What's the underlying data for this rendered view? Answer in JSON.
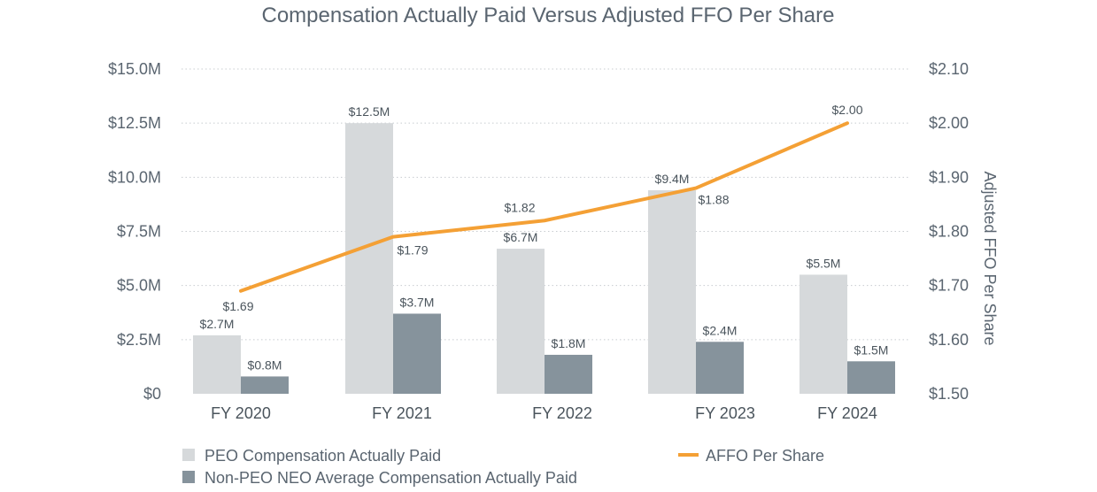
{
  "chart_data": {
    "type": "bar",
    "title": "Compensation Actually Paid Versus Adjusted FFO Per Share",
    "categories": [
      "FY 2020",
      "FY 2021",
      "FY 2022",
      "FY 2023",
      "FY 2024"
    ],
    "series": [
      {
        "name": "PEO Compensation Actually Paid",
        "type": "bar",
        "axis": "left",
        "color": "#d6d9db",
        "values": [
          2.7,
          12.5,
          6.7,
          9.4,
          5.5
        ],
        "labels": [
          "$2.7M",
          "$12.5M",
          "$6.7M",
          "$9.4M",
          "$5.5M"
        ]
      },
      {
        "name": "Non-PEO NEO Average Compensation Actually Paid",
        "type": "bar",
        "axis": "left",
        "color": "#86939c",
        "values": [
          0.8,
          3.7,
          1.8,
          2.4,
          1.5
        ],
        "labels": [
          "$0.8M",
          "$3.7M",
          "$1.8M",
          "$2.4M",
          "$1.5M"
        ]
      },
      {
        "name": "AFFO Per Share",
        "type": "line",
        "axis": "right",
        "color": "#f4a035",
        "values": [
          1.69,
          1.79,
          1.82,
          1.88,
          2.0
        ],
        "labels": [
          "$1.69",
          "$1.79",
          "$1.82",
          "$1.88",
          "$2.00"
        ]
      }
    ],
    "left_axis": {
      "ylim": [
        0,
        15
      ],
      "ticks": [
        0,
        2.5,
        5,
        7.5,
        10,
        12.5,
        15
      ],
      "tick_labels": [
        "$0",
        "$2.5M",
        "$5.0M",
        "$7.5M",
        "$10.0M",
        "$12.5M",
        "$15.0M"
      ],
      "label": ""
    },
    "right_axis": {
      "ylim": [
        1.5,
        2.1
      ],
      "ticks": [
        1.5,
        1.6,
        1.7,
        1.8,
        1.9,
        2.0,
        2.1
      ],
      "tick_labels": [
        "$1.50",
        "$1.60",
        "$1.70",
        "$1.80",
        "$1.90",
        "$2.00",
        "$2.10"
      ],
      "label": "Adjusted FFO Per Share"
    },
    "grid": true,
    "legend": "bottom"
  }
}
